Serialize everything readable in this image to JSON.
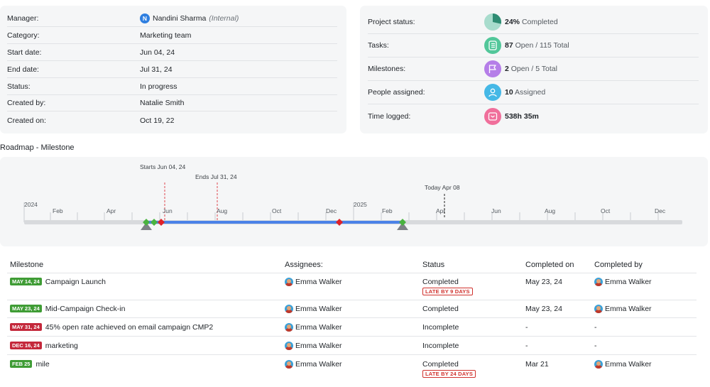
{
  "details": [
    {
      "label": "Manager:",
      "value": "Nandini Sharma",
      "extra": "(Internal)",
      "avatar": "N"
    },
    {
      "label": "Category:",
      "value": "Marketing team"
    },
    {
      "label": "Start date:",
      "value": "Jun 04, 24"
    },
    {
      "label": "End date:",
      "value": "Jul 31, 24"
    },
    {
      "label": "Status:",
      "value": "In progress"
    },
    {
      "label": "Created by:",
      "value": "Natalie Smith"
    },
    {
      "label": "Created on:",
      "value": "Oct 19, 22"
    }
  ],
  "summary": [
    {
      "label": "Project status:",
      "bold": "24%",
      "rest": "Completed",
      "icon": "pie-chart-icon",
      "color": "#a8dccd"
    },
    {
      "label": "Tasks:",
      "bold": "87",
      "rest": "Open / 115 Total",
      "icon": "task-list-icon",
      "color": "#52c79a"
    },
    {
      "label": "Milestones:",
      "bold": "2",
      "rest": "Open / 5 Total",
      "icon": "flag-icon",
      "color": "#b57ee8"
    },
    {
      "label": "People assigned:",
      "bold": "10",
      "rest": "Assigned",
      "icon": "user-icon",
      "color": "#45b8e6"
    },
    {
      "label": "Time logged:",
      "bold": "538h 35m",
      "rest": "",
      "icon": "clock-icon",
      "color": "#f06f9b"
    }
  ],
  "roadmap": {
    "title": "Roadmap - Milestone",
    "starts_label": "Starts Jun 04, 24",
    "ends_label": "Ends Jul 31, 24",
    "today_label": "Today Apr 08",
    "year_labels": [
      "2024",
      "2025"
    ],
    "month_labels": [
      "Feb",
      "Apr",
      "Jun",
      "Aug",
      "Oct",
      "Dec",
      "Feb",
      "Apr",
      "Jun",
      "Aug",
      "Oct",
      "Dec"
    ]
  },
  "table": {
    "headers": [
      "Milestone",
      "Assignees:",
      "Status",
      "Completed on",
      "Completed by"
    ],
    "rows": [
      {
        "badge": "MAY 14, 24",
        "badge_color": "#3f9c35",
        "name": "Campaign Launch",
        "assignee": "Emma Walker",
        "status": "Completed",
        "late": "LATE BY 9 DAYS",
        "completed_on": "May 23, 24",
        "completed_by": "Emma Walker"
      },
      {
        "badge": "MAY 23, 24",
        "badge_color": "#3f9c35",
        "name": "Mid-Campaign Check-in",
        "assignee": "Emma Walker",
        "status": "Completed",
        "late": "",
        "completed_on": "May 23, 24",
        "completed_by": "Emma Walker"
      },
      {
        "badge": "MAY 31, 24",
        "badge_color": "#c4283b",
        "name": "45% open rate achieved on email campaign CMP2",
        "assignee": "Emma Walker",
        "status": "Incomplete",
        "late": "",
        "completed_on": "-",
        "completed_by": "-"
      },
      {
        "badge": "DEC 16, 24",
        "badge_color": "#c4283b",
        "name": "marketing",
        "assignee": "Emma Walker",
        "status": "Incomplete",
        "late": "",
        "completed_on": "-",
        "completed_by": "-"
      },
      {
        "badge": "FEB 25",
        "badge_color": "#3f9c35",
        "name": "mile",
        "assignee": "Emma Walker",
        "status": "Completed",
        "late": "LATE BY 24 DAYS",
        "completed_on": "Mar 21",
        "completed_by": "Emma Walker"
      }
    ]
  }
}
